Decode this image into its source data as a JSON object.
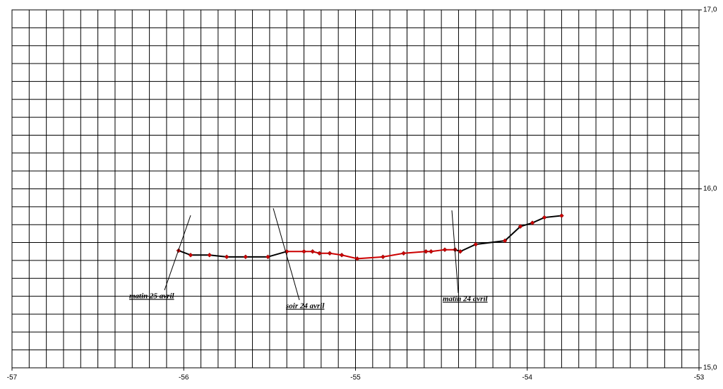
{
  "chart_data": {
    "type": "line",
    "xlim": [
      -57,
      -53
    ],
    "ylim": [
      15,
      17
    ],
    "xticks": [
      -57,
      -56,
      -55,
      -54,
      -53
    ],
    "yticks": [
      {
        "value": 15,
        "label": "15,0"
      },
      {
        "value": 16,
        "label": "16,0"
      },
      {
        "value": 17,
        "label": "17,0"
      }
    ],
    "x_grid": [
      -56.9,
      -56.8,
      -56.7,
      -56.6,
      -56.5,
      -56.4,
      -56.3,
      -56.2,
      -56.1,
      -56,
      -55.9,
      -55.8,
      -55.7,
      -55.6,
      -55.5,
      -55.4,
      -55.3,
      -55.2,
      -55.1,
      -55,
      -54.9,
      -54.8,
      -54.7,
      -54.6,
      -54.5,
      -54.4,
      -54.3,
      -54.2,
      -54.1,
      -54,
      -53.9,
      -53.8,
      -53.7,
      -53.6,
      -53.5,
      -53.4,
      -53.3,
      -53.2,
      -53.1
    ],
    "y_grid": [
      15.1,
      15.2,
      15.3,
      15.4,
      15.5,
      15.6,
      15.7,
      15.8,
      15.9,
      16,
      16.1,
      16.2,
      16.3,
      16.4,
      16.5,
      16.6,
      16.7,
      16.8,
      16.9
    ],
    "grid": true,
    "y_axis_side": "right",
    "marker_color": "#cc0000",
    "series": [
      {
        "color": "#000000",
        "x": [
          -56.03,
          -55.96,
          -55.85,
          -55.75,
          -55.64,
          -55.51,
          -55.4
        ],
        "values": [
          15.655,
          15.63,
          15.63,
          15.62,
          15.62,
          15.62,
          15.65
        ]
      },
      {
        "color": "#cc0000",
        "x": [
          -55.4,
          -55.3,
          -55.25,
          -55.21,
          -55.15,
          -55.08,
          -54.99,
          -54.84,
          -54.72,
          -54.59,
          -54.56,
          -54.48,
          -54.42
        ],
        "values": [
          15.65,
          15.65,
          15.65,
          15.64,
          15.64,
          15.63,
          15.61,
          15.62,
          15.64,
          15.65,
          15.65,
          15.66,
          15.66
        ]
      },
      {
        "color": "#000000",
        "x": [
          -54.42,
          -54.39,
          -54.3,
          -54.13,
          -54.04,
          -53.97,
          -53.9,
          -53.8
        ],
        "values": [
          15.66,
          15.65,
          15.69,
          15.71,
          15.79,
          15.81,
          15.84,
          15.85
        ]
      }
    ],
    "annotations": [
      "matin 25 avril",
      "soir 24 avril",
      "matin 24 avril"
    ]
  }
}
